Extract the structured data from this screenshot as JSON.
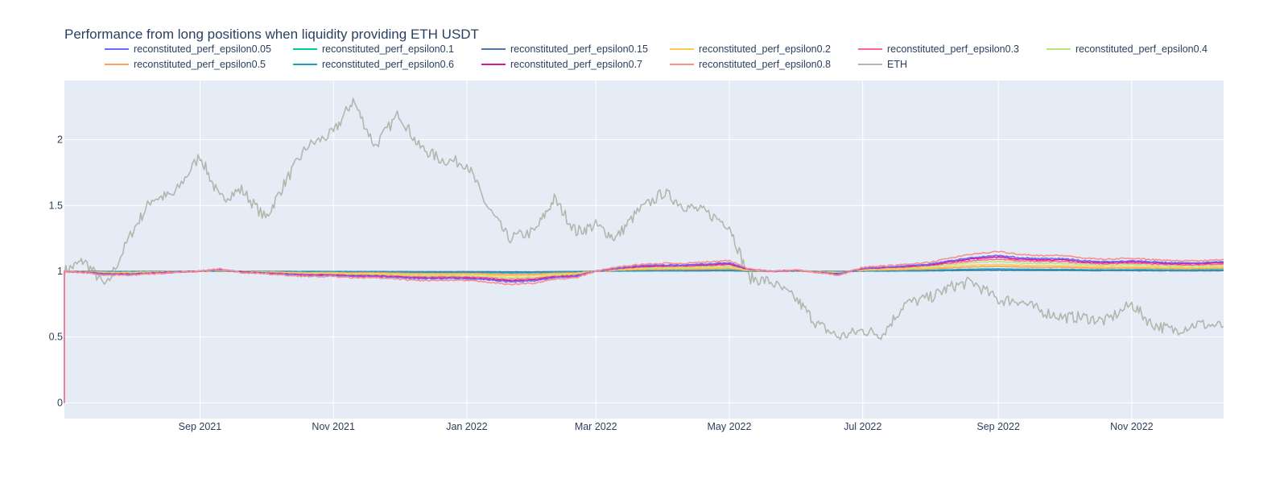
{
  "chart_data": {
    "type": "line",
    "title": "Performance from long positions when liquidity providing ETH USDT",
    "xlabel": "",
    "ylabel": "",
    "x_range": [
      "2021-07-01",
      "2022-12-13"
    ],
    "ylim": [
      -0.12,
      2.45
    ],
    "y_ticks": [
      0,
      0.5,
      1,
      1.5,
      2
    ],
    "y_tick_labels": [
      "0",
      "0.5",
      "1",
      "1.5",
      "2"
    ],
    "x_ticks": [
      "2021-09-01",
      "2021-11-01",
      "2022-01-01",
      "2022-03-01",
      "2022-05-01",
      "2022-07-01",
      "2022-09-01",
      "2022-11-01"
    ],
    "x_tick_labels": [
      "Sep 2021",
      "Nov 2021",
      "Jan 2022",
      "Mar 2022",
      "May 2022",
      "Jul 2022",
      "Sep 2022",
      "Nov 2022"
    ],
    "grid": true,
    "legend_position": "top",
    "background_color": "#e5ecf6",
    "x": [
      "2021-07-01",
      "2021-07-10",
      "2021-07-20",
      "2021-08-01",
      "2021-08-10",
      "2021-08-20",
      "2021-09-01",
      "2021-09-10",
      "2021-09-20",
      "2021-10-01",
      "2021-10-10",
      "2021-10-20",
      "2021-11-01",
      "2021-11-10",
      "2021-11-20",
      "2021-12-01",
      "2021-12-10",
      "2021-12-20",
      "2022-01-01",
      "2022-01-10",
      "2022-01-20",
      "2022-02-01",
      "2022-02-10",
      "2022-02-20",
      "2022-03-01",
      "2022-03-10",
      "2022-03-20",
      "2022-04-01",
      "2022-04-10",
      "2022-04-20",
      "2022-05-01",
      "2022-05-10",
      "2022-05-20",
      "2022-06-01",
      "2022-06-10",
      "2022-06-20",
      "2022-07-01",
      "2022-07-10",
      "2022-07-20",
      "2022-08-01",
      "2022-08-10",
      "2022-08-20",
      "2022-09-01",
      "2022-09-10",
      "2022-09-20",
      "2022-10-01",
      "2022-10-10",
      "2022-10-20",
      "2022-11-01",
      "2022-11-10",
      "2022-11-20",
      "2022-12-01",
      "2022-12-13"
    ],
    "eth_values": [
      1.0,
      1.08,
      0.88,
      1.3,
      1.55,
      1.58,
      1.88,
      1.55,
      1.62,
      1.4,
      1.68,
      1.95,
      2.05,
      2.3,
      1.95,
      2.2,
      1.95,
      1.85,
      1.82,
      1.5,
      1.25,
      1.3,
      1.55,
      1.3,
      1.35,
      1.25,
      1.45,
      1.6,
      1.5,
      1.45,
      1.35,
      0.95,
      0.92,
      0.78,
      0.6,
      0.5,
      0.55,
      0.52,
      0.75,
      0.8,
      0.88,
      0.92,
      0.78,
      0.78,
      0.7,
      0.65,
      0.65,
      0.62,
      0.75,
      0.6,
      0.55,
      0.6,
      0.58
    ],
    "base_values": [
      1.0,
      0.99,
      0.97,
      0.97,
      0.98,
      0.99,
      1.0,
      1.02,
      0.99,
      0.98,
      0.97,
      0.96,
      0.96,
      0.95,
      0.95,
      0.94,
      0.93,
      0.93,
      0.93,
      0.92,
      0.9,
      0.91,
      0.94,
      0.95,
      1.0,
      1.03,
      1.05,
      1.06,
      1.06,
      1.07,
      1.08,
      1.02,
      1.0,
      1.01,
      0.99,
      0.97,
      1.03,
      1.04,
      1.05,
      1.07,
      1.1,
      1.13,
      1.15,
      1.13,
      1.12,
      1.12,
      1.1,
      1.09,
      1.1,
      1.09,
      1.08,
      1.08,
      1.09
    ],
    "series": [
      {
        "name": "reconstituted_perf_epsilon0.05",
        "color": "#636efa",
        "factor": 0.8,
        "draw_order": 10
      },
      {
        "name": "reconstituted_perf_epsilon0.1",
        "color": "#00cc96",
        "factor": 0.05,
        "draw_order": 1
      },
      {
        "name": "reconstituted_perf_epsilon0.15",
        "color": "#4c78a8",
        "factor": 0.05,
        "draw_order": 2
      },
      {
        "name": "reconstituted_perf_epsilon0.2",
        "color": "#fecb52",
        "factor": 0.35,
        "draw_order": 5
      },
      {
        "name": "reconstituted_perf_epsilon0.3",
        "color": "#ff6692",
        "factor": 0.62,
        "draw_order": 8
      },
      {
        "name": "reconstituted_perf_epsilon0.4",
        "color": "#b6e880",
        "factor": 0.5,
        "draw_order": 7
      },
      {
        "name": "reconstituted_perf_epsilon0.5",
        "color": "#ffa15a",
        "factor": 0.25,
        "draw_order": 4
      },
      {
        "name": "reconstituted_perf_epsilon0.6",
        "color": "#19a3c2",
        "factor": 0.12,
        "draw_order": 3
      },
      {
        "name": "reconstituted_perf_epsilon0.7",
        "color": "#e6138f",
        "factor": 0.72,
        "draw_order": 9
      },
      {
        "name": "reconstituted_perf_epsilon0.8",
        "color": "#ff8c8c",
        "factor": 1.0,
        "draw_order": 11
      },
      {
        "name": "ETH",
        "color": "#b0b8ad",
        "draw_order": 0
      }
    ]
  }
}
